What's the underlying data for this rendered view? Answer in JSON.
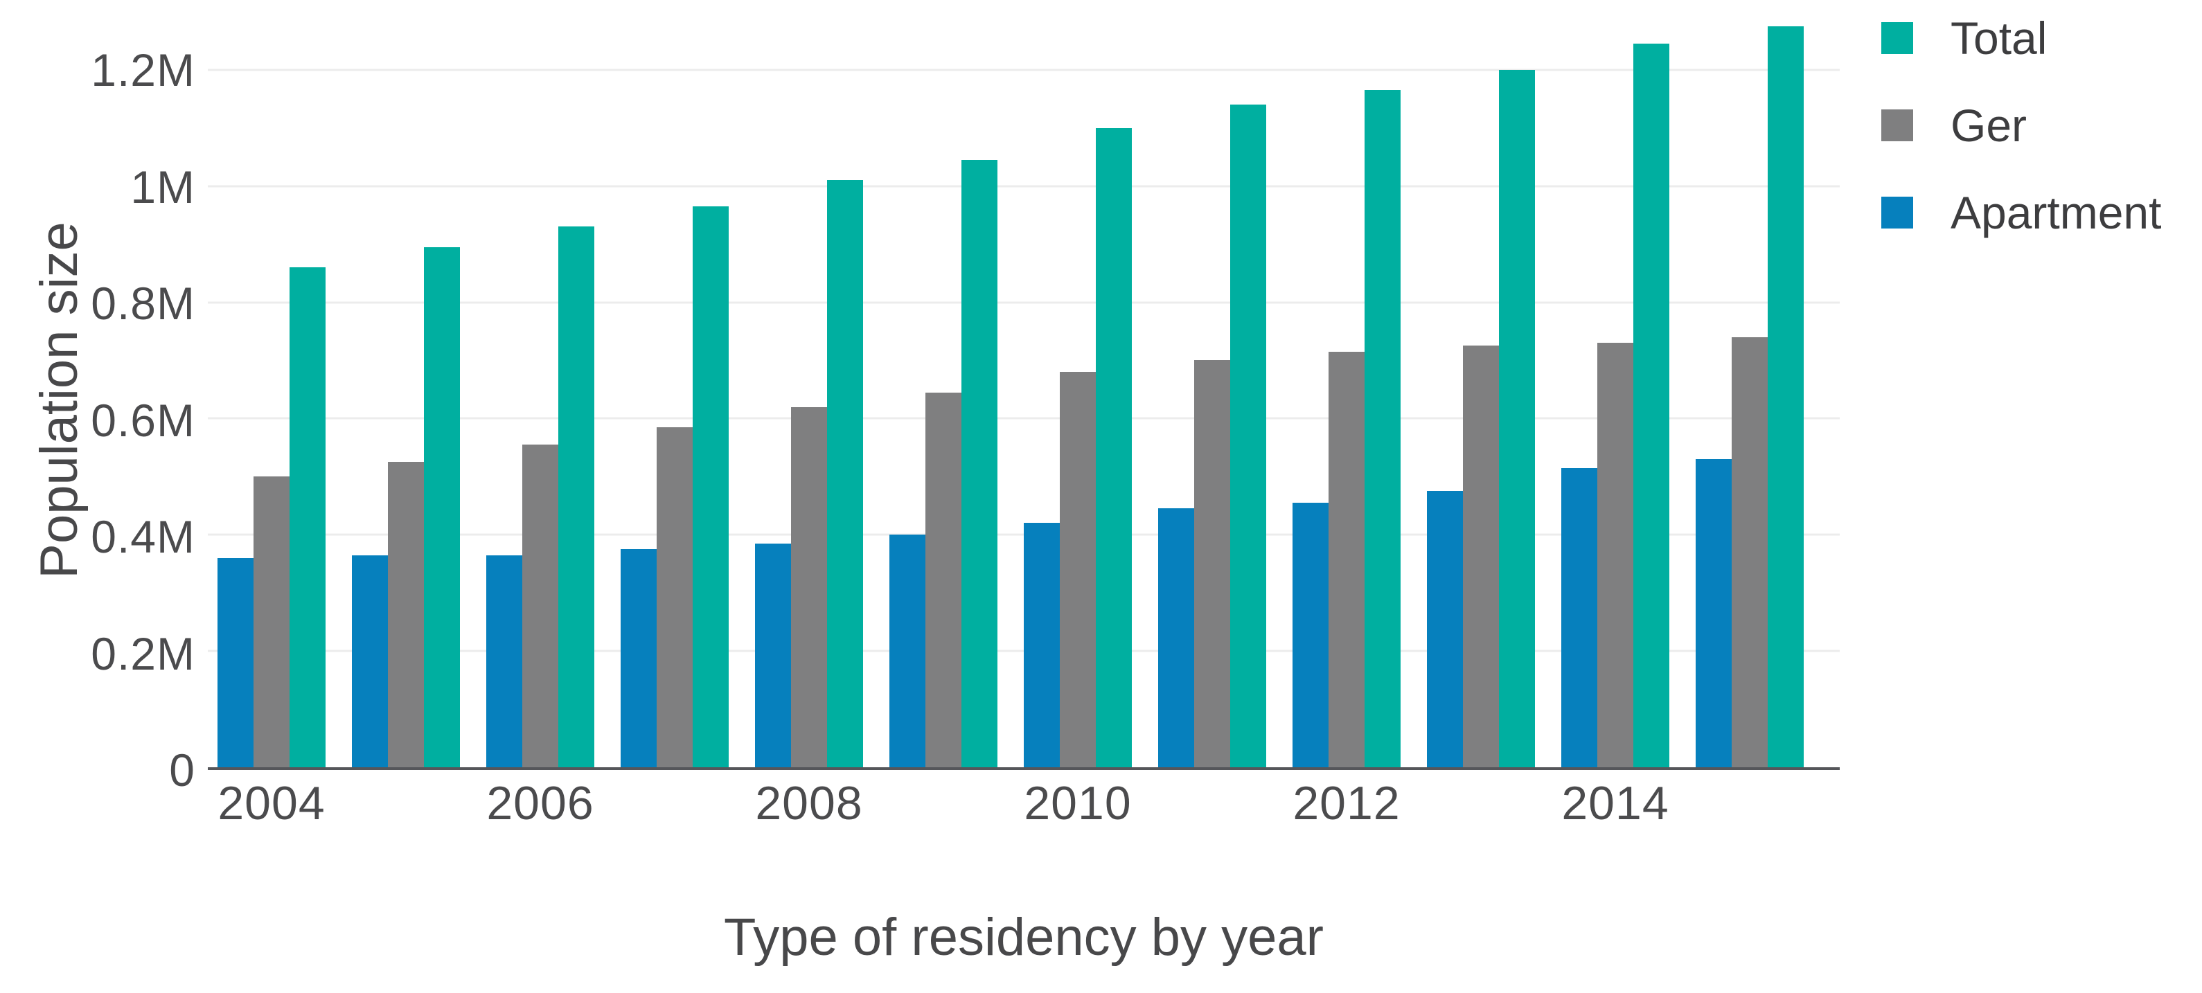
{
  "chart_data": {
    "type": "bar",
    "title": "",
    "xlabel": "Type of residency by year",
    "ylabel": "Population size",
    "unit": "persons (millions)",
    "categories": [
      "2004",
      "2005",
      "2006",
      "2007",
      "2008",
      "2009",
      "2010",
      "2011",
      "2012",
      "2013",
      "2014",
      "2015"
    ],
    "group_order": [
      "Apartment",
      "Ger",
      "Total"
    ],
    "series": [
      {
        "name": "Total",
        "color": "#00AFA0",
        "values": [
          0.86,
          0.895,
          0.93,
          0.965,
          1.01,
          1.045,
          1.1,
          1.14,
          1.165,
          1.2,
          1.245,
          1.275
        ]
      },
      {
        "name": "Ger",
        "color": "#7F7F80",
        "values": [
          0.5,
          0.525,
          0.555,
          0.585,
          0.62,
          0.645,
          0.68,
          0.7,
          0.715,
          0.725,
          0.73,
          0.74
        ]
      },
      {
        "name": "Apartment",
        "color": "#0680BD",
        "values": [
          0.36,
          0.365,
          0.365,
          0.375,
          0.385,
          0.4,
          0.42,
          0.445,
          0.455,
          0.475,
          0.515,
          0.53
        ]
      }
    ],
    "ylim": [
      0,
      1.32
    ],
    "y_ticks": [
      {
        "value": 0,
        "label": "0"
      },
      {
        "value": 0.2,
        "label": "0.2M"
      },
      {
        "value": 0.4,
        "label": "0.4M"
      },
      {
        "value": 0.6,
        "label": "0.6M"
      },
      {
        "value": 0.8,
        "label": "0.8M"
      },
      {
        "value": 1.0,
        "label": "1M"
      },
      {
        "value": 1.2,
        "label": "1.2M"
      }
    ],
    "x_ticks": [
      {
        "group_index": 0,
        "label": "2004"
      },
      {
        "group_index": 2,
        "label": "2006"
      },
      {
        "group_index": 4,
        "label": "2008"
      },
      {
        "group_index": 6,
        "label": "2010"
      },
      {
        "group_index": 8,
        "label": "2012"
      },
      {
        "group_index": 10,
        "label": "2014"
      }
    ],
    "legend": {
      "position": "top-right",
      "entries": [
        "Total",
        "Ger",
        "Apartment"
      ]
    },
    "grid": "horizontal",
    "colors": {
      "axis_line": "#55565A",
      "gridline": "#ECECEC",
      "tick_text": "#4B4B4D",
      "axis_title_text": "#48484A",
      "legend_text": "#3D3D3F",
      "background": "#FFFFFF"
    }
  }
}
